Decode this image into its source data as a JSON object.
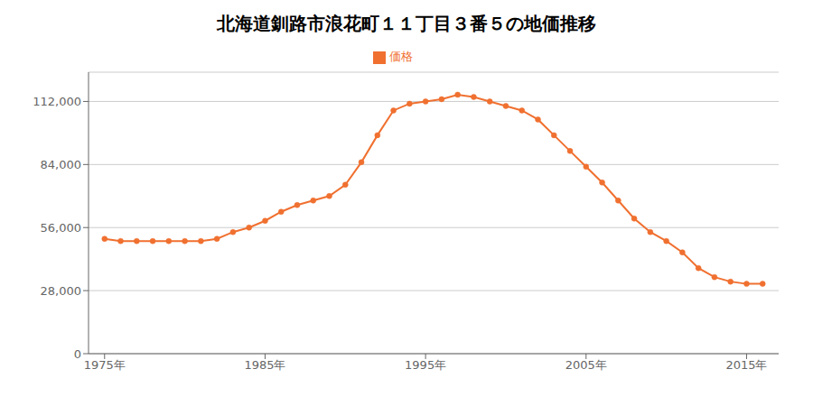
{
  "chart_data": {
    "type": "line",
    "title": "北海道釧路市浪花町１１丁目３番５の地価推移",
    "x": [
      1975,
      1976,
      1977,
      1978,
      1979,
      1980,
      1981,
      1982,
      1983,
      1984,
      1985,
      1986,
      1987,
      1988,
      1989,
      1990,
      1991,
      1992,
      1993,
      1994,
      1995,
      1996,
      1997,
      1998,
      1999,
      2000,
      2001,
      2002,
      2003,
      2004,
      2005,
      2006,
      2007,
      2008,
      2009,
      2010,
      2011,
      2012,
      2013,
      2014,
      2015,
      2016
    ],
    "series": [
      {
        "name": "価格",
        "color": "#f07030",
        "marker": "circle",
        "values": [
          51000,
          50000,
          50000,
          50000,
          50000,
          50000,
          50000,
          51000,
          54000,
          56000,
          59000,
          63000,
          66000,
          68000,
          70000,
          75000,
          85000,
          97000,
          108000,
          111000,
          112000,
          113000,
          115000,
          114000,
          112000,
          110000,
          108000,
          104000,
          97000,
          90000,
          83000,
          76000,
          68000,
          60000,
          54000,
          50000,
          45000,
          38000,
          34000,
          32000,
          31000,
          31000
        ]
      }
    ],
    "xlim": [
      1974,
      2017
    ],
    "xticks": [
      {
        "value": 1975,
        "label": "1975年"
      },
      {
        "value": 1985,
        "label": "1985年"
      },
      {
        "value": 1995,
        "label": "1995年"
      },
      {
        "value": 2005,
        "label": "2005年"
      },
      {
        "value": 2015,
        "label": "2015年"
      }
    ],
    "ylim": [
      0,
      125000
    ],
    "yticks": [
      0,
      {
        "value": 28000,
        "label": "28,000"
      },
      {
        "value": 56000,
        "label": "56,000"
      },
      {
        "value": 84000,
        "label": "84,000"
      },
      {
        "value": 112000,
        "label": "112,000"
      }
    ],
    "grid": true,
    "legend": "top"
  }
}
